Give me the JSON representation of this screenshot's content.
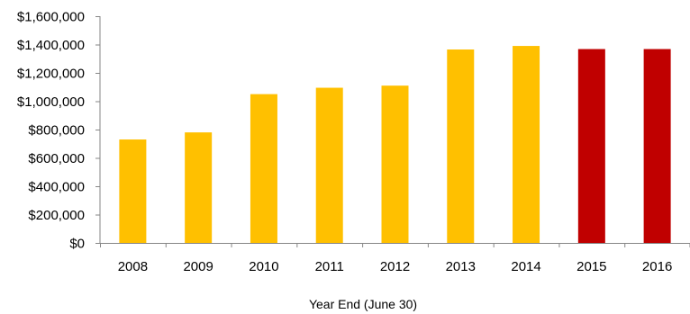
{
  "chart_data": {
    "type": "bar",
    "title": "",
    "xlabel": "Year End (June 30)",
    "ylabel": "",
    "categories": [
      "2008",
      "2009",
      "2010",
      "2011",
      "2012",
      "2013",
      "2014",
      "2015",
      "2016"
    ],
    "values": [
      730000,
      780000,
      1050000,
      1095000,
      1110000,
      1365000,
      1390000,
      1368000,
      1368000
    ],
    "bar_colors": [
      "#FFC000",
      "#FFC000",
      "#FFC000",
      "#FFC000",
      "#FFC000",
      "#FFC000",
      "#FFC000",
      "#C00000",
      "#C00000"
    ],
    "ylim": [
      0,
      1600000
    ],
    "yticks": [
      0,
      200000,
      400000,
      600000,
      800000,
      1000000,
      1200000,
      1400000,
      1600000
    ],
    "ytick_labels": [
      "$0",
      "$200,000",
      "$400,000",
      "$600,000",
      "$800,000",
      "$1,000,000",
      "$1,200,000",
      "$1,400,000",
      "$1,600,000"
    ],
    "grid": false,
    "legend": "none"
  }
}
